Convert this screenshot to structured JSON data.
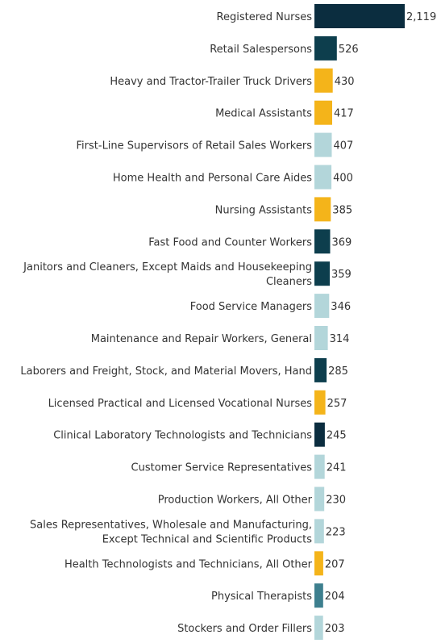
{
  "chart_data": {
    "type": "bar",
    "orientation": "horizontal",
    "title": "",
    "xlabel": "",
    "ylabel": "",
    "grid": false,
    "legend": "none",
    "xlim": [
      0,
      2119
    ],
    "categories": [
      [
        "Registered Nurses"
      ],
      [
        "Retail Salespersons"
      ],
      [
        "Heavy and Tractor-Trailer Truck Drivers"
      ],
      [
        "Medical Assistants"
      ],
      [
        "First-Line Supervisors of Retail Sales Workers"
      ],
      [
        "Home Health and Personal Care Aides"
      ],
      [
        "Nursing Assistants"
      ],
      [
        "Fast Food and Counter Workers"
      ],
      [
        "Janitors and Cleaners, Except Maids and Housekeeping",
        "Cleaners"
      ],
      [
        "Food Service Managers"
      ],
      [
        "Maintenance and Repair Workers, General"
      ],
      [
        "Laborers and Freight, Stock, and Material Movers, Hand"
      ],
      [
        "Licensed Practical and Licensed Vocational Nurses"
      ],
      [
        "Clinical Laboratory Technologists and Technicians"
      ],
      [
        "Customer Service Representatives"
      ],
      [
        "Production Workers, All Other"
      ],
      [
        "Sales Representatives, Wholesale and Manufacturing,",
        "Except Technical and Scientific Products"
      ],
      [
        "Health Technologists and Technicians, All Other"
      ],
      [
        "Physical Therapists"
      ],
      [
        "Stockers and Order Fillers"
      ]
    ],
    "values": [
      2119,
      526,
      430,
      417,
      407,
      400,
      385,
      369,
      359,
      346,
      314,
      285,
      257,
      245,
      241,
      230,
      223,
      207,
      204,
      203
    ],
    "value_labels": [
      "2,119",
      "526",
      "430",
      "417",
      "407",
      "400",
      "385",
      "369",
      "359",
      "346",
      "314",
      "285",
      "257",
      "245",
      "241",
      "230",
      "223",
      "207",
      "204",
      "203"
    ],
    "colors": [
      "#0b2d3f",
      "#0d3e4d",
      "#f4b41a",
      "#f4b41a",
      "#b3d6da",
      "#b3d6da",
      "#f4b41a",
      "#0d3e4d",
      "#0d3e4d",
      "#b3d6da",
      "#b3d6da",
      "#0d3e4d",
      "#f4b41a",
      "#0b2d3f",
      "#b3d6da",
      "#b3d6da",
      "#b3d6da",
      "#f4b41a",
      "#3d7f8e",
      "#b3d6da"
    ]
  }
}
